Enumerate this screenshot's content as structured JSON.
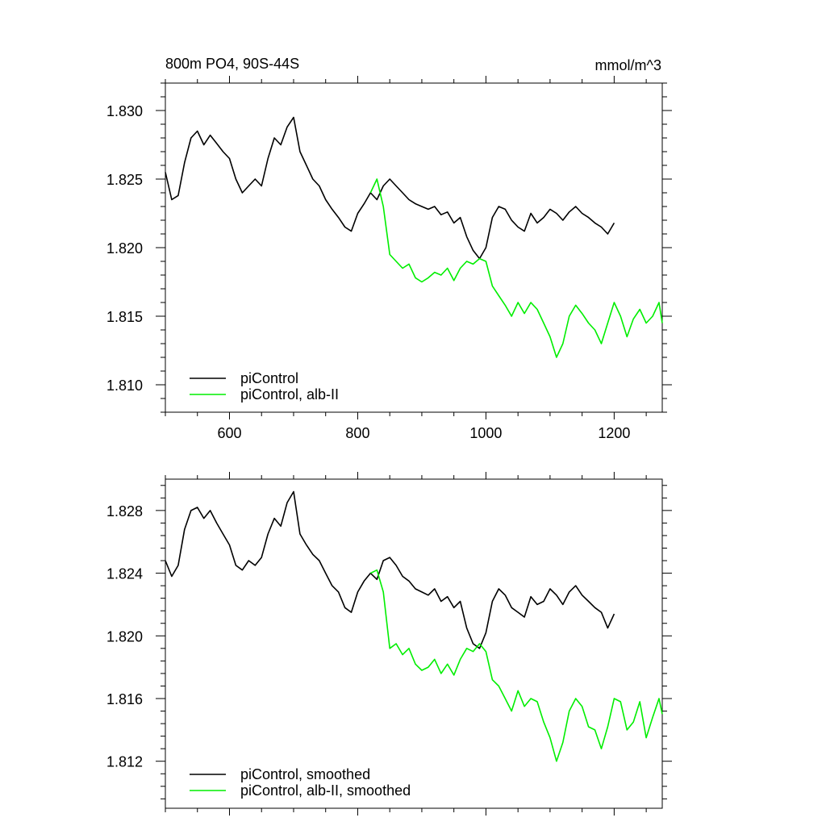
{
  "chart_data": [
    {
      "type": "line",
      "title": "800m PO4, 90S-44S",
      "units": "mmol/m^3",
      "xlim": [
        500,
        1275
      ],
      "ylim": [
        1.808,
        1.832
      ],
      "xticks": [
        600,
        800,
        1000,
        1200
      ],
      "xtick_labels": [
        "600",
        "800",
        "1000",
        "1200"
      ],
      "yticks": [
        1.81,
        1.815,
        1.82,
        1.825,
        1.83
      ],
      "ytick_labels": [
        "1.810",
        "1.815",
        "1.820",
        "1.825",
        "1.830"
      ],
      "legend_position": "bottom-left",
      "grid": false,
      "series": [
        {
          "name": "piControl",
          "color": "#000000",
          "x": [
            500,
            510,
            520,
            530,
            540,
            550,
            560,
            570,
            580,
            590,
            600,
            610,
            620,
            630,
            640,
            650,
            660,
            670,
            680,
            690,
            700,
            710,
            720,
            730,
            740,
            750,
            760,
            770,
            780,
            790,
            800,
            810,
            820,
            830,
            840,
            850,
            860,
            870,
            880,
            890,
            900,
            910,
            920,
            930,
            940,
            950,
            960,
            970,
            980,
            990,
            1000,
            1010,
            1020,
            1030,
            1040,
            1050,
            1060,
            1070,
            1080,
            1090,
            1100,
            1110,
            1120,
            1130,
            1140,
            1150,
            1160,
            1170,
            1180,
            1190,
            1200
          ],
          "values": [
            1.8255,
            1.8235,
            1.8238,
            1.8262,
            1.828,
            1.8285,
            1.8275,
            1.8282,
            1.8276,
            1.827,
            1.8265,
            1.825,
            1.824,
            1.8245,
            1.825,
            1.8245,
            1.8265,
            1.828,
            1.8275,
            1.8288,
            1.8295,
            1.827,
            1.826,
            1.825,
            1.8245,
            1.8235,
            1.8228,
            1.8222,
            1.8215,
            1.8212,
            1.8225,
            1.8232,
            1.824,
            1.8235,
            1.8245,
            1.825,
            1.8245,
            1.824,
            1.8235,
            1.8232,
            1.823,
            1.8228,
            1.823,
            1.8224,
            1.8226,
            1.8218,
            1.8222,
            1.8208,
            1.8198,
            1.8192,
            1.82,
            1.8222,
            1.823,
            1.8228,
            1.822,
            1.8215,
            1.8212,
            1.8225,
            1.8218,
            1.8222,
            1.8228,
            1.8225,
            1.822,
            1.8226,
            1.823,
            1.8225,
            1.8222,
            1.8218,
            1.8215,
            1.821,
            1.8218
          ]
        },
        {
          "name": "piControl, alb-II",
          "color": "#00ee00",
          "x": [
            820,
            830,
            840,
            850,
            860,
            870,
            880,
            890,
            900,
            910,
            920,
            930,
            940,
            950,
            960,
            970,
            980,
            990,
            1000,
            1010,
            1020,
            1030,
            1040,
            1050,
            1060,
            1070,
            1080,
            1090,
            1100,
            1110,
            1120,
            1130,
            1140,
            1150,
            1160,
            1170,
            1180,
            1190,
            1200,
            1210,
            1220,
            1230,
            1240,
            1250,
            1260,
            1270,
            1275
          ],
          "values": [
            1.824,
            1.825,
            1.823,
            1.8195,
            1.819,
            1.8185,
            1.8188,
            1.8178,
            1.8175,
            1.8178,
            1.8182,
            1.818,
            1.8185,
            1.8176,
            1.8185,
            1.819,
            1.8188,
            1.8192,
            1.819,
            1.8172,
            1.8165,
            1.8158,
            1.815,
            1.816,
            1.8152,
            1.816,
            1.8155,
            1.8145,
            1.8135,
            1.812,
            1.813,
            1.815,
            1.8158,
            1.8152,
            1.8145,
            1.814,
            1.813,
            1.8145,
            1.816,
            1.815,
            1.8135,
            1.8148,
            1.8155,
            1.8145,
            1.815,
            1.816,
            1.8145
          ]
        }
      ]
    },
    {
      "type": "line",
      "xlim": [
        500,
        1275
      ],
      "ylim": [
        1.809,
        1.83
      ],
      "xticks": [
        600,
        800,
        1000,
        1200
      ],
      "yticks": [
        1.812,
        1.816,
        1.82,
        1.824,
        1.828
      ],
      "ytick_labels": [
        "1.812",
        "1.816",
        "1.820",
        "1.824",
        "1.828"
      ],
      "legend_position": "bottom-left",
      "grid": false,
      "series": [
        {
          "name": "piControl, smoothed",
          "color": "#000000",
          "x": [
            500,
            510,
            520,
            530,
            540,
            550,
            560,
            570,
            580,
            590,
            600,
            610,
            620,
            630,
            640,
            650,
            660,
            670,
            680,
            690,
            700,
            710,
            720,
            730,
            740,
            750,
            760,
            770,
            780,
            790,
            800,
            810,
            820,
            830,
            840,
            850,
            860,
            870,
            880,
            890,
            900,
            910,
            920,
            930,
            940,
            950,
            960,
            970,
            980,
            990,
            1000,
            1010,
            1020,
            1030,
            1040,
            1050,
            1060,
            1070,
            1080,
            1090,
            1100,
            1110,
            1120,
            1130,
            1140,
            1150,
            1160,
            1170,
            1180,
            1190,
            1200
          ],
          "values": [
            1.8248,
            1.8238,
            1.8245,
            1.8268,
            1.828,
            1.8282,
            1.8275,
            1.828,
            1.8272,
            1.8265,
            1.8258,
            1.8245,
            1.8242,
            1.8248,
            1.8245,
            1.825,
            1.8265,
            1.8275,
            1.827,
            1.8285,
            1.8292,
            1.8265,
            1.8258,
            1.8252,
            1.8248,
            1.824,
            1.8232,
            1.8228,
            1.8218,
            1.8215,
            1.8228,
            1.8235,
            1.824,
            1.8236,
            1.8248,
            1.825,
            1.8245,
            1.8238,
            1.8235,
            1.823,
            1.8228,
            1.8226,
            1.823,
            1.8222,
            1.8225,
            1.8218,
            1.8222,
            1.8205,
            1.8195,
            1.8192,
            1.8202,
            1.8222,
            1.823,
            1.8226,
            1.8218,
            1.8215,
            1.8212,
            1.8225,
            1.822,
            1.8222,
            1.823,
            1.8226,
            1.822,
            1.8228,
            1.8232,
            1.8226,
            1.8222,
            1.8218,
            1.8215,
            1.8205,
            1.8214
          ]
        },
        {
          "name": "piControl, alb-II, smoothed",
          "color": "#00ee00",
          "x": [
            820,
            830,
            840,
            850,
            860,
            870,
            880,
            890,
            900,
            910,
            920,
            930,
            940,
            950,
            960,
            970,
            980,
            990,
            1000,
            1010,
            1020,
            1030,
            1040,
            1050,
            1060,
            1070,
            1080,
            1090,
            1100,
            1110,
            1120,
            1130,
            1140,
            1150,
            1160,
            1170,
            1180,
            1190,
            1200,
            1210,
            1220,
            1230,
            1240,
            1250,
            1260,
            1270,
            1275
          ],
          "values": [
            1.824,
            1.8242,
            1.8228,
            1.8192,
            1.8195,
            1.8188,
            1.8192,
            1.8182,
            1.8178,
            1.818,
            1.8185,
            1.8176,
            1.8182,
            1.8175,
            1.8185,
            1.8192,
            1.819,
            1.8195,
            1.819,
            1.8172,
            1.8168,
            1.816,
            1.8152,
            1.8165,
            1.8155,
            1.816,
            1.8158,
            1.8145,
            1.8135,
            1.812,
            1.8132,
            1.8152,
            1.816,
            1.8155,
            1.8142,
            1.814,
            1.8128,
            1.8142,
            1.816,
            1.8158,
            1.814,
            1.8145,
            1.8158,
            1.8135,
            1.8148,
            1.816,
            1.815
          ]
        }
      ]
    }
  ]
}
